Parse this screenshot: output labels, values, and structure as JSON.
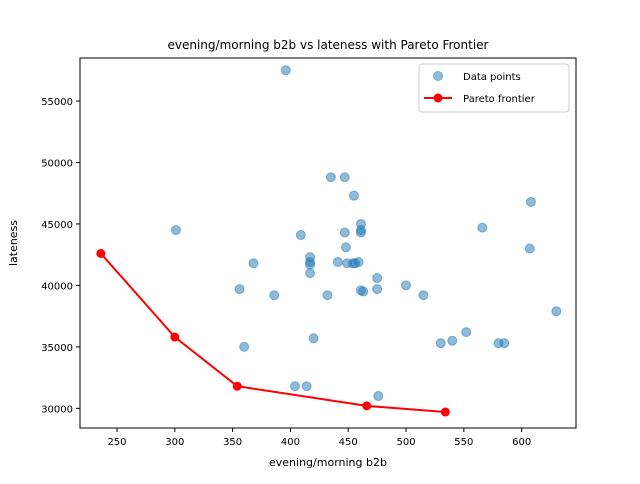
{
  "chart_data": {
    "type": "scatter",
    "title": "evening/morning b2b vs lateness with Pareto Frontier",
    "xlabel": "evening/morning b2b",
    "ylabel": "lateness",
    "xlim": [
      218,
      647
    ],
    "ylim": [
      28400,
      58500
    ],
    "xticks": [
      250,
      300,
      350,
      400,
      450,
      500,
      550,
      600
    ],
    "yticks": [
      30000,
      35000,
      40000,
      45000,
      50000,
      55000
    ],
    "grid": false,
    "legend_position": "top-right",
    "series": [
      {
        "name": "Data points",
        "kind": "scatter",
        "color": "#1f77b4",
        "opacity": 0.5,
        "points": [
          [
            396,
            57500
          ],
          [
            435,
            48800
          ],
          [
            447,
            48800
          ],
          [
            455,
            47300
          ],
          [
            461,
            45000
          ],
          [
            461,
            44500
          ],
          [
            447,
            44300
          ],
          [
            461,
            44300
          ],
          [
            448,
            43100
          ],
          [
            417,
            42300
          ],
          [
            417,
            41900
          ],
          [
            454,
            41800
          ],
          [
            456,
            41800
          ],
          [
            449,
            41800
          ],
          [
            459,
            41900
          ],
          [
            441,
            41900
          ],
          [
            417,
            41700
          ],
          [
            417,
            41000
          ],
          [
            301,
            44500
          ],
          [
            409,
            44100
          ],
          [
            368,
            41800
          ],
          [
            356,
            39700
          ],
          [
            386,
            39200
          ],
          [
            432,
            39200
          ],
          [
            461,
            39600
          ],
          [
            463,
            39500
          ],
          [
            475,
            39700
          ],
          [
            475,
            40600
          ],
          [
            500,
            40000
          ],
          [
            515,
            39200
          ],
          [
            566,
            44700
          ],
          [
            608,
            46800
          ],
          [
            607,
            43000
          ],
          [
            630,
            37900
          ],
          [
            420,
            35700
          ],
          [
            360,
            35000
          ],
          [
            530,
            35300
          ],
          [
            540,
            35500
          ],
          [
            552,
            36200
          ],
          [
            580,
            35300
          ],
          [
            585,
            35300
          ],
          [
            404,
            31800
          ],
          [
            414,
            31800
          ],
          [
            476,
            31000
          ]
        ]
      },
      {
        "name": "Pareto frontier",
        "kind": "line",
        "color": "#ff0000",
        "points": [
          [
            236,
            42600
          ],
          [
            300,
            35800
          ],
          [
            354,
            31800
          ],
          [
            466,
            30200
          ],
          [
            534,
            29700
          ]
        ]
      }
    ]
  }
}
